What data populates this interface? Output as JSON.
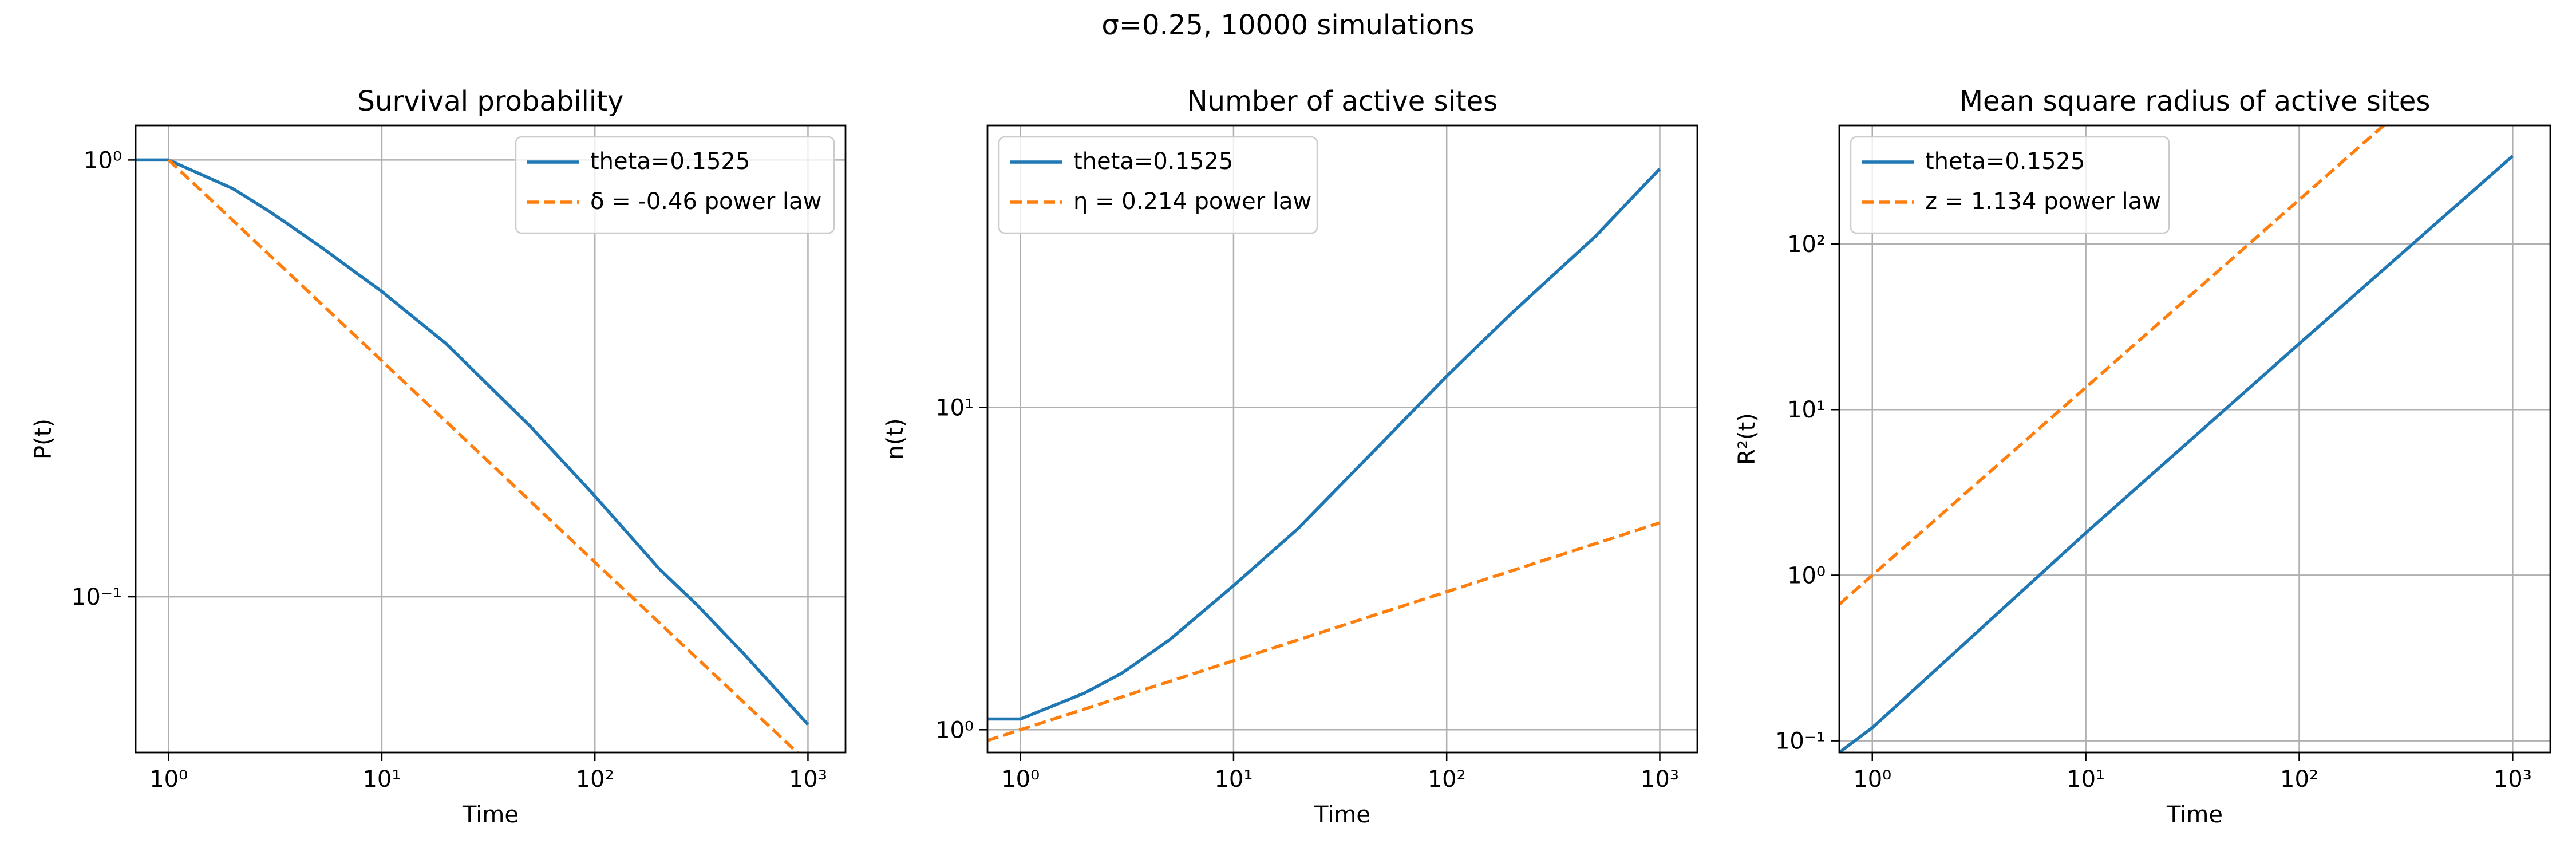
{
  "figure": {
    "suptitle": "σ=0.25, 10000 simulations"
  },
  "chart_data": [
    {
      "type": "line",
      "title": "Survival probability",
      "xlabel": "Time",
      "ylabel": "P(t)",
      "xscale": "log",
      "yscale": "log",
      "xlim": [
        0.7,
        1500
      ],
      "ylim": [
        0.044,
        1.2
      ],
      "xticks": [
        {
          "value": 1,
          "label": "10⁰"
        },
        {
          "value": 10,
          "label": "10¹"
        },
        {
          "value": 100,
          "label": "10²"
        },
        {
          "value": 1000,
          "label": "10³"
        }
      ],
      "yticks": [
        {
          "value": 0.1,
          "label": "10⁻¹"
        },
        {
          "value": 1,
          "label": "10⁰"
        }
      ],
      "grid": true,
      "legend_loc": "upper right",
      "series": [
        {
          "name": "theta=0.1525",
          "color": "#1f77b4",
          "style": "solid",
          "x": [
            0.7,
            1,
            2,
            3,
            5,
            10,
            20,
            50,
            100,
            200,
            300,
            500,
            1000
          ],
          "y": [
            1.0,
            1.0,
            0.86,
            0.76,
            0.64,
            0.5,
            0.38,
            0.245,
            0.17,
            0.116,
            0.096,
            0.074,
            0.051
          ]
        },
        {
          "name": "δ = -0.46 power law",
          "color": "#ff7f0e",
          "style": "dashed",
          "x": [
            1,
            10,
            100,
            1000
          ],
          "y": [
            1.0,
            0.347,
            0.12,
            0.0417
          ]
        }
      ]
    },
    {
      "type": "line",
      "title": "Number of active sites",
      "xlabel": "Time",
      "ylabel": "n(t)",
      "xscale": "log",
      "yscale": "log",
      "xlim": [
        0.7,
        1500
      ],
      "ylim": [
        0.85,
        75
      ],
      "xticks": [
        {
          "value": 1,
          "label": "10⁰"
        },
        {
          "value": 10,
          "label": "10¹"
        },
        {
          "value": 100,
          "label": "10²"
        },
        {
          "value": 1000,
          "label": "10³"
        }
      ],
      "yticks": [
        {
          "value": 1,
          "label": "10⁰"
        },
        {
          "value": 10,
          "label": "10¹"
        }
      ],
      "grid": true,
      "legend_loc": "upper left",
      "series": [
        {
          "name": "theta=0.1525",
          "color": "#1f77b4",
          "style": "solid",
          "x": [
            0.7,
            1,
            2,
            3,
            5,
            10,
            20,
            50,
            100,
            200,
            500,
            1000
          ],
          "y": [
            1.08,
            1.08,
            1.3,
            1.5,
            1.9,
            2.8,
            4.2,
            7.8,
            12.5,
            19.5,
            34,
            55
          ]
        },
        {
          "name": "η = 0.214 power law",
          "color": "#ff7f0e",
          "style": "dashed",
          "x": [
            0.7,
            1,
            10,
            100,
            1000
          ],
          "y": [
            0.926,
            1.0,
            1.637,
            2.679,
            4.385
          ]
        }
      ]
    },
    {
      "type": "line",
      "title": "Mean square radius of active sites",
      "xlabel": "Time",
      "ylabel": "R²(t)",
      "xscale": "log",
      "yscale": "log",
      "xlim": [
        0.7,
        1500
      ],
      "ylim": [
        0.085,
        520
      ],
      "xticks": [
        {
          "value": 1,
          "label": "10⁰"
        },
        {
          "value": 10,
          "label": "10¹"
        },
        {
          "value": 100,
          "label": "10²"
        },
        {
          "value": 1000,
          "label": "10³"
        }
      ],
      "yticks": [
        {
          "value": 0.1,
          "label": "10⁻¹"
        },
        {
          "value": 1,
          "label": "10⁰"
        },
        {
          "value": 10,
          "label": "10¹"
        },
        {
          "value": 100,
          "label": "10²"
        }
      ],
      "grid": true,
      "legend_loc": "upper left",
      "series": [
        {
          "name": "theta=0.1525",
          "color": "#1f77b4",
          "style": "solid",
          "x": [
            0.7,
            1,
            10,
            100,
            1000
          ],
          "y": [
            0.085,
            0.12,
            1.8,
            25,
            340
          ]
        },
        {
          "name": "z = 1.134 power law",
          "color": "#ff7f0e",
          "style": "dashed",
          "x": [
            0.7,
            1,
            10,
            100,
            1000
          ],
          "y": [
            0.667,
            1.0,
            13.6,
            185,
            2520
          ]
        }
      ]
    }
  ]
}
